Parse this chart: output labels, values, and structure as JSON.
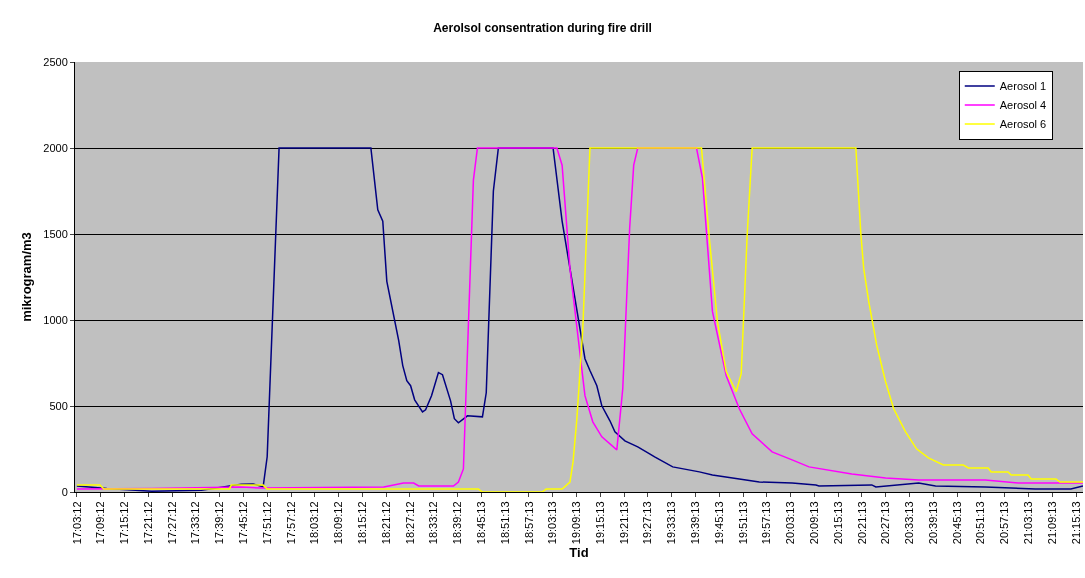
{
  "chart_data": {
    "type": "line",
    "title": "Aerolsol consentration during fire drill",
    "xlabel": "Tid",
    "ylabel": "mikrogram/m3",
    "xlim": [
      17.045,
      21.283
    ],
    "ylim": [
      0,
      2500
    ],
    "yticks": [
      0,
      500,
      1000,
      1500,
      2000,
      2500
    ],
    "grid": "y",
    "legend": "top right",
    "marker": "none",
    "line_style": "solid",
    "xticks": [
      {
        "value": 17.0533,
        "label": "17:03:12"
      },
      {
        "value": 17.1533,
        "label": "17:09:12"
      },
      {
        "value": 17.2533,
        "label": "17:15:12"
      },
      {
        "value": 17.3533,
        "label": "17:21:12"
      },
      {
        "value": 17.4533,
        "label": "17:27:12"
      },
      {
        "value": 17.5533,
        "label": "17:33:12"
      },
      {
        "value": 17.6533,
        "label": "17:39:12"
      },
      {
        "value": 17.7533,
        "label": "17:45:12"
      },
      {
        "value": 17.8533,
        "label": "17:51:12"
      },
      {
        "value": 17.9533,
        "label": "17:57:12"
      },
      {
        "value": 18.0533,
        "label": "18:03:12"
      },
      {
        "value": 18.1533,
        "label": "18:09:12"
      },
      {
        "value": 18.2533,
        "label": "18:15:12"
      },
      {
        "value": 18.3533,
        "label": "18:21:12"
      },
      {
        "value": 18.4533,
        "label": "18:27:12"
      },
      {
        "value": 18.5533,
        "label": "18:33:12"
      },
      {
        "value": 18.6533,
        "label": "18:39:12"
      },
      {
        "value": 18.7536,
        "label": "18:45:13"
      },
      {
        "value": 18.8536,
        "label": "18:51:13"
      },
      {
        "value": 18.9536,
        "label": "18:57:13"
      },
      {
        "value": 19.0536,
        "label": "19:03:13"
      },
      {
        "value": 19.1536,
        "label": "19:09:13"
      },
      {
        "value": 19.2536,
        "label": "19:15:13"
      },
      {
        "value": 19.3536,
        "label": "19:21:13"
      },
      {
        "value": 19.4536,
        "label": "19:27:13"
      },
      {
        "value": 19.5536,
        "label": "19:33:13"
      },
      {
        "value": 19.6536,
        "label": "19:39:13"
      },
      {
        "value": 19.7536,
        "label": "19:45:13"
      },
      {
        "value": 19.8536,
        "label": "19:51:13"
      },
      {
        "value": 19.9536,
        "label": "19:57:13"
      },
      {
        "value": 20.0536,
        "label": "20:03:13"
      },
      {
        "value": 20.1536,
        "label": "20:09:13"
      },
      {
        "value": 20.2536,
        "label": "20:15:13"
      },
      {
        "value": 20.3536,
        "label": "20:21:13"
      },
      {
        "value": 20.4536,
        "label": "20:27:13"
      },
      {
        "value": 20.5536,
        "label": "20:33:13"
      },
      {
        "value": 20.6536,
        "label": "20:39:13"
      },
      {
        "value": 20.7536,
        "label": "20:45:13"
      },
      {
        "value": 20.8536,
        "label": "20:51:13"
      },
      {
        "value": 20.9536,
        "label": "20:57:13"
      },
      {
        "value": 21.0536,
        "label": "21:03:13"
      },
      {
        "value": 21.1536,
        "label": "21:09:13"
      },
      {
        "value": 21.2536,
        "label": "21:15:13"
      }
    ],
    "series": [
      {
        "name": "Aerosol 1",
        "color": "#000080",
        "x": [
          17.053,
          17.179,
          17.367,
          17.577,
          17.744,
          17.794,
          17.836,
          17.853,
          17.903,
          18.289,
          18.318,
          18.339,
          18.356,
          18.406,
          18.423,
          18.44,
          18.456,
          18.473,
          18.506,
          18.519,
          18.544,
          18.573,
          18.59,
          18.624,
          18.64,
          18.657,
          18.695,
          18.758,
          18.774,
          18.804,
          18.825,
          19.055,
          19.093,
          19.189,
          19.21,
          19.239,
          19.26,
          19.294,
          19.315,
          19.357,
          19.411,
          19.461,
          19.482,
          19.558,
          19.67,
          19.725,
          19.838,
          19.922,
          20.06,
          20.16,
          20.173,
          20.395,
          20.412,
          20.592,
          20.663,
          20.872,
          21.082,
          21.232,
          21.283
        ],
        "values": [
          35,
          20,
          5,
          10,
          45,
          47,
          30,
          205,
          2000,
          2000,
          1640,
          1575,
          1225,
          880,
          735,
          647,
          618,
          536,
          466,
          478,
          560,
          694,
          682,
          530,
          426,
          402,
          443,
          437,
          577,
          1750,
          2000,
          2000,
          1575,
          775,
          706,
          618,
          501,
          414,
          350,
          297,
          262,
          222,
          204,
          146,
          117,
          99,
          76,
          58,
          52,
          41,
          35,
          41,
          29,
          52,
          35,
          29,
          17,
          17,
          35
        ]
      },
      {
        "name": "Aerosol 4",
        "color": "#ff00ff",
        "x": [
          17.053,
          17.367,
          17.744,
          17.828,
          18.343,
          18.385,
          18.426,
          18.469,
          18.49,
          18.636,
          18.657,
          18.678,
          18.72,
          18.737,
          19.071,
          19.093,
          19.126,
          19.189,
          19.222,
          19.26,
          19.323,
          19.348,
          19.377,
          19.394,
          19.411,
          19.658,
          19.683,
          19.725,
          19.783,
          19.838,
          19.892,
          19.976,
          20.06,
          20.131,
          20.311,
          20.453,
          20.592,
          20.872,
          21.01,
          21.283
        ],
        "values": [
          17,
          20,
          29,
          23,
          29,
          41,
          52,
          52,
          35,
          35,
          58,
          134,
          1813,
          2000,
          2000,
          1900,
          1300,
          560,
          408,
          321,
          245,
          600,
          1533,
          1900,
          2000,
          2000,
          1825,
          1050,
          676,
          484,
          338,
          233,
          187,
          146,
          105,
          82,
          70,
          70,
          52,
          52
        ]
      },
      {
        "name": "Aerosol 6",
        "color": "#ffff00",
        "x": [
          17.053,
          17.15,
          17.166,
          17.694,
          17.702,
          17.836,
          17.853,
          18.741,
          18.758,
          19.009,
          19.026,
          19.093,
          19.126,
          19.139,
          19.155,
          19.18,
          19.21,
          19.679,
          19.712,
          19.746,
          19.783,
          19.825,
          19.846,
          19.871,
          19.892,
          20.328,
          20.349,
          20.361,
          20.382,
          20.416,
          20.453,
          20.487,
          20.537,
          20.583,
          20.633,
          20.696,
          20.78,
          20.801,
          20.884,
          20.897,
          20.968,
          20.981,
          21.052,
          21.065,
          21.169,
          21.186,
          21.283
        ],
        "values": [
          41,
          41,
          17,
          17,
          40,
          40,
          17,
          17,
          0,
          0,
          17,
          17,
          58,
          175,
          425,
          950,
          2000,
          2000,
          1475,
          990,
          700,
          583,
          688,
          1493,
          2000,
          2000,
          1500,
          1300,
          1108,
          851,
          641,
          484,
          350,
          251,
          198,
          157,
          157,
          140,
          140,
          117,
          117,
          99,
          99,
          76,
          76,
          58,
          58
        ]
      }
    ]
  }
}
